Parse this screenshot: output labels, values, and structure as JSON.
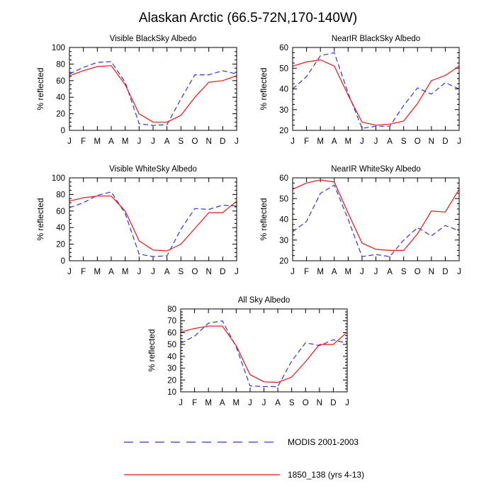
{
  "title": "Alaskan Arctic (66.5-72N,170-140W)",
  "colors": {
    "modis": "#3333dd",
    "model": "#ee1111"
  },
  "legend": {
    "modis_label": "MODIS 2001-2003",
    "model_label": "1850_138 (yrs 4-13)"
  },
  "chart_data": [
    {
      "type": "line",
      "title": "Visible BlackSky Albedo",
      "xlabel": "",
      "ylabel": "% reflected",
      "categories": [
        "J",
        "F",
        "M",
        "A",
        "M",
        "J",
        "J",
        "A",
        "S",
        "O",
        "N",
        "D",
        "J"
      ],
      "ylim": [
        0,
        100
      ],
      "yticks": [
        0,
        20,
        40,
        60,
        80,
        100
      ],
      "series": [
        {
          "name": "MODIS 2001-2003",
          "style": "dashed",
          "values": [
            68,
            76,
            82,
            83,
            58,
            8,
            6,
            7,
            38,
            67,
            67,
            72,
            68
          ]
        },
        {
          "name": "1850_138 (yrs 4-13)",
          "style": "solid",
          "values": [
            66,
            72,
            77,
            78,
            55,
            20,
            10,
            10,
            18,
            40,
            58,
            60,
            66
          ]
        }
      ]
    },
    {
      "type": "line",
      "title": "NearIR BlackSky Albedo",
      "xlabel": "",
      "ylabel": "% reflected",
      "categories": [
        "J",
        "F",
        "M",
        "A",
        "M",
        "J",
        "J",
        "A",
        "S",
        "O",
        "N",
        "D",
        "J"
      ],
      "ylim": [
        20,
        60
      ],
      "yticks": [
        20,
        30,
        40,
        50,
        60
      ],
      "series": [
        {
          "name": "MODIS 2001-2003",
          "style": "dashed",
          "values": [
            40,
            46,
            56,
            57.5,
            38,
            21,
            22,
            22,
            32,
            40.5,
            37.5,
            43,
            40
          ]
        },
        {
          "name": "1850_138 (yrs 4-13)",
          "style": "solid",
          "values": [
            51,
            53,
            54,
            51,
            37,
            24,
            22.5,
            23,
            24.5,
            33,
            44,
            46.5,
            51
          ]
        }
      ]
    },
    {
      "type": "line",
      "title": "Visible WhiteSky Albedo",
      "xlabel": "",
      "ylabel": "% reflected",
      "categories": [
        "J",
        "F",
        "M",
        "A",
        "M",
        "J",
        "J",
        "A",
        "S",
        "O",
        "N",
        "D",
        "J"
      ],
      "ylim": [
        0,
        100
      ],
      "yticks": [
        0,
        20,
        40,
        60,
        80,
        100
      ],
      "series": [
        {
          "name": "MODIS 2001-2003",
          "style": "dashed",
          "values": [
            64,
            70,
            79,
            83,
            57,
            8,
            5,
            6,
            38,
            63,
            62,
            67,
            66
          ]
        },
        {
          "name": "1850_138 (yrs 4-13)",
          "style": "solid",
          "values": [
            72,
            76,
            78,
            78,
            60,
            24,
            13,
            12,
            20,
            39,
            58,
            58,
            72
          ]
        }
      ]
    },
    {
      "type": "line",
      "title": "NearIR WhiteSky Albedo",
      "xlabel": "",
      "ylabel": "% reflected",
      "categories": [
        "J",
        "F",
        "M",
        "A",
        "M",
        "J",
        "J",
        "A",
        "S",
        "O",
        "N",
        "D",
        "J"
      ],
      "ylim": [
        20,
        60
      ],
      "yticks": [
        20,
        30,
        40,
        50,
        60
      ],
      "series": [
        {
          "name": "MODIS 2001-2003",
          "style": "dashed",
          "values": [
            34,
            39,
            52.5,
            56.5,
            40,
            22,
            23,
            22,
            30,
            36,
            32,
            37,
            34.5
          ]
        },
        {
          "name": "1850_138 (yrs 4-13)",
          "style": "solid",
          "values": [
            54.5,
            57.5,
            59,
            58,
            43,
            28.5,
            25.5,
            25,
            25,
            33,
            44,
            43.5,
            54.5
          ]
        }
      ]
    },
    {
      "type": "line",
      "title": "All Sky Albedo",
      "xlabel": "",
      "ylabel": "% reflected",
      "categories": [
        "J",
        "F",
        "M",
        "A",
        "M",
        "J",
        "J",
        "A",
        "S",
        "O",
        "N",
        "D",
        "J"
      ],
      "ylim": [
        10,
        80
      ],
      "yticks": [
        10,
        20,
        30,
        40,
        50,
        60,
        70,
        80
      ],
      "series": [
        {
          "name": "MODIS 2001-2003",
          "style": "dashed",
          "values": [
            51,
            57,
            68,
            70,
            48,
            15,
            14.5,
            14.5,
            36,
            51.5,
            49,
            54,
            51
          ]
        },
        {
          "name": "1850_138 (yrs 4-13)",
          "style": "solid",
          "values": [
            60.5,
            63.5,
            65.5,
            65.5,
            49,
            24.5,
            18.5,
            18,
            22.5,
            35.5,
            50,
            50,
            60.5
          ]
        }
      ]
    }
  ]
}
